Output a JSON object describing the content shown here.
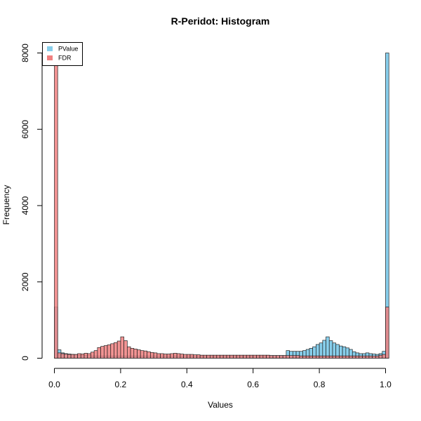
{
  "chart_data": {
    "type": "bar",
    "title": "R-Peridot: Histogram",
    "xlabel": "Values",
    "ylabel": "Frequency",
    "xlim": [
      0,
      1
    ],
    "ylim": [
      0,
      8000
    ],
    "x_ticks": [
      0.0,
      0.2,
      0.4,
      0.6,
      0.8,
      1.0
    ],
    "x_tick_labels": [
      "0.0",
      "0.2",
      "0.4",
      "0.6",
      "0.8",
      "1.0"
    ],
    "y_ticks": [
      0,
      2000,
      4000,
      6000,
      8000
    ],
    "y_tick_labels": [
      "0",
      "2000",
      "4000",
      "6000",
      "8000"
    ],
    "legend_placement": "top-left",
    "grid": false,
    "bin_start": 0,
    "bin_width": 0.01,
    "series": [
      {
        "name": "PValue",
        "color": "#87ceeb",
        "values": [
          1340,
          220,
          140,
          120,
          110,
          100,
          90,
          80,
          80,
          70,
          70,
          60,
          60,
          60,
          60,
          60,
          60,
          60,
          60,
          60,
          60,
          60,
          60,
          60,
          60,
          60,
          60,
          60,
          60,
          60,
          60,
          60,
          60,
          60,
          60,
          60,
          60,
          60,
          60,
          60,
          60,
          60,
          60,
          60,
          60,
          60,
          60,
          60,
          60,
          60,
          60,
          60,
          60,
          60,
          60,
          60,
          60,
          60,
          60,
          60,
          60,
          60,
          60,
          60,
          70,
          70,
          70,
          70,
          70,
          70,
          200,
          180,
          180,
          180,
          180,
          200,
          230,
          260,
          300,
          360,
          400,
          470,
          560,
          460,
          400,
          360,
          320,
          300,
          270,
          230,
          170,
          140,
          120,
          120,
          140,
          120,
          110,
          100,
          120,
          180,
          8000
        ]
      },
      {
        "name": "FDR",
        "color": "#f08080",
        "values": [
          8000,
          140,
          120,
          110,
          100,
          100,
          100,
          120,
          110,
          130,
          120,
          160,
          200,
          280,
          310,
          330,
          350,
          380,
          410,
          450,
          560,
          460,
          300,
          260,
          240,
          220,
          200,
          190,
          170,
          150,
          140,
          120,
          120,
          110,
          110,
          120,
          130,
          120,
          110,
          100,
          100,
          100,
          90,
          90,
          80,
          80,
          80,
          80,
          80,
          80,
          80,
          80,
          80,
          80,
          80,
          80,
          80,
          80,
          80,
          80,
          80,
          80,
          80,
          80,
          80,
          70,
          70,
          70,
          70,
          70,
          70,
          70,
          70,
          70,
          60,
          60,
          60,
          60,
          60,
          60,
          60,
          60,
          60,
          60,
          60,
          60,
          60,
          60,
          60,
          60,
          60,
          60,
          60,
          60,
          60,
          60,
          60,
          60,
          80,
          100,
          1340
        ]
      }
    ]
  }
}
